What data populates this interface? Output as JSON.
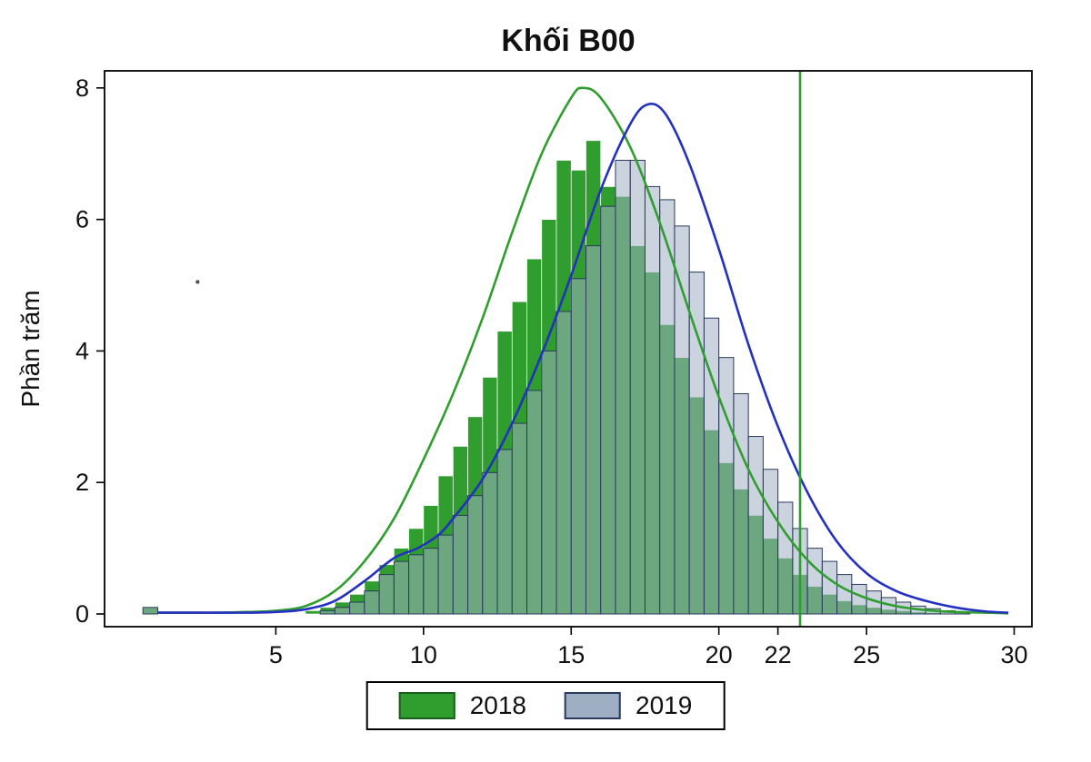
{
  "chart_data": {
    "type": "histogram-overlay",
    "title": "Khối B00",
    "ylabel": "Phần trăm",
    "xlabel": "",
    "xlim": [
      -0.8,
      30.6
    ],
    "ylim": [
      -0.193,
      8.26
    ],
    "x_ticks": [
      5,
      10,
      15,
      20,
      22,
      25,
      30
    ],
    "y_ticks": [
      0,
      2,
      4,
      6,
      8
    ],
    "bin_width": 0.5,
    "grid": false,
    "cutoff_line": {
      "x": 22.75,
      "color": "#2f9e2f"
    },
    "stray_dot": {
      "x": 2.35,
      "y": 5.05,
      "color": "#555555"
    },
    "series": [
      {
        "name": "2018",
        "bar_fill": "#2f9e2f",
        "bar_stroke": "#ffffff",
        "bar_stroke_width": 0.7,
        "bar_opacity": 1,
        "density_color": "#2f9e2f",
        "bars": [
          [
            0.75,
            0.1
          ],
          [
            6.25,
            0.05
          ],
          [
            6.75,
            0.1
          ],
          [
            7.25,
            0.18
          ],
          [
            7.75,
            0.3
          ],
          [
            8.25,
            0.5
          ],
          [
            8.75,
            0.75
          ],
          [
            9.25,
            1.0
          ],
          [
            9.75,
            1.3
          ],
          [
            10.25,
            1.65
          ],
          [
            10.75,
            2.1
          ],
          [
            11.25,
            2.55
          ],
          [
            11.75,
            3.0
          ],
          [
            12.25,
            3.6
          ],
          [
            12.75,
            4.3
          ],
          [
            13.25,
            4.75
          ],
          [
            13.75,
            5.4
          ],
          [
            14.25,
            6.0
          ],
          [
            14.75,
            6.9
          ],
          [
            15.25,
            6.75
          ],
          [
            15.75,
            7.2
          ],
          [
            16.25,
            6.5
          ],
          [
            16.75,
            6.35
          ],
          [
            17.25,
            5.6
          ],
          [
            17.75,
            5.2
          ],
          [
            18.25,
            4.4
          ],
          [
            18.75,
            3.9
          ],
          [
            19.25,
            3.3
          ],
          [
            19.75,
            2.8
          ],
          [
            20.25,
            2.3
          ],
          [
            20.75,
            1.9
          ],
          [
            21.25,
            1.5
          ],
          [
            21.75,
            1.15
          ],
          [
            22.25,
            0.85
          ],
          [
            22.75,
            0.6
          ],
          [
            23.25,
            0.42
          ],
          [
            23.75,
            0.3
          ],
          [
            24.25,
            0.2
          ],
          [
            24.75,
            0.14
          ],
          [
            25.25,
            0.1
          ],
          [
            25.75,
            0.07
          ],
          [
            26.25,
            0.05
          ],
          [
            26.75,
            0.03
          ],
          [
            27.25,
            0.02
          ]
        ],
        "density": [
          [
            1,
            0.02
          ],
          [
            2,
            0.02
          ],
          [
            3,
            0.02
          ],
          [
            4,
            0.03
          ],
          [
            5,
            0.05
          ],
          [
            6,
            0.12
          ],
          [
            7,
            0.35
          ],
          [
            8,
            0.8
          ],
          [
            9,
            1.45
          ],
          [
            10,
            2.35
          ],
          [
            11,
            3.35
          ],
          [
            12,
            4.5
          ],
          [
            13,
            5.8
          ],
          [
            14,
            7.0
          ],
          [
            15,
            7.85
          ],
          [
            15.4,
            8.0
          ],
          [
            16,
            7.85
          ],
          [
            17,
            7.1
          ],
          [
            18,
            5.95
          ],
          [
            19,
            4.6
          ],
          [
            20,
            3.3
          ],
          [
            21,
            2.2
          ],
          [
            22,
            1.4
          ],
          [
            23,
            0.82
          ],
          [
            24,
            0.45
          ],
          [
            25,
            0.24
          ],
          [
            26,
            0.12
          ],
          [
            27,
            0.06
          ],
          [
            28,
            0.03
          ],
          [
            29,
            0.02
          ],
          [
            29.8,
            0.01
          ]
        ]
      },
      {
        "name": "2019",
        "bar_fill": "#9fafc3",
        "bar_stroke": "#2b3a5c",
        "bar_stroke_width": 1,
        "bar_opacity": 0.55,
        "density_color": "#2430c0",
        "bars": [
          [
            0.75,
            0.1
          ],
          [
            6.75,
            0.05
          ],
          [
            7.25,
            0.1
          ],
          [
            7.75,
            0.18
          ],
          [
            8.25,
            0.35
          ],
          [
            8.75,
            0.6
          ],
          [
            9.25,
            0.8
          ],
          [
            9.75,
            0.9
          ],
          [
            10.25,
            1.0
          ],
          [
            10.75,
            1.2
          ],
          [
            11.25,
            1.5
          ],
          [
            11.75,
            1.8
          ],
          [
            12.25,
            2.15
          ],
          [
            12.75,
            2.5
          ],
          [
            13.25,
            2.9
          ],
          [
            13.75,
            3.4
          ],
          [
            14.25,
            4.0
          ],
          [
            14.75,
            4.6
          ],
          [
            15.25,
            5.1
          ],
          [
            15.75,
            5.6
          ],
          [
            16.25,
            6.2
          ],
          [
            16.75,
            6.9
          ],
          [
            17.25,
            6.9
          ],
          [
            17.75,
            6.5
          ],
          [
            18.25,
            6.3
          ],
          [
            18.75,
            5.9
          ],
          [
            19.25,
            5.2
          ],
          [
            19.75,
            4.5
          ],
          [
            20.25,
            3.9
          ],
          [
            20.75,
            3.35
          ],
          [
            21.25,
            2.7
          ],
          [
            21.75,
            2.2
          ],
          [
            22.25,
            1.7
          ],
          [
            22.75,
            1.3
          ],
          [
            23.25,
            1.0
          ],
          [
            23.75,
            0.8
          ],
          [
            24.25,
            0.6
          ],
          [
            24.75,
            0.45
          ],
          [
            25.25,
            0.35
          ],
          [
            25.75,
            0.25
          ],
          [
            26.25,
            0.18
          ],
          [
            26.75,
            0.12
          ],
          [
            27.25,
            0.08
          ],
          [
            27.75,
            0.05
          ],
          [
            28.25,
            0.03
          ]
        ],
        "density": [
          [
            1,
            0.02
          ],
          [
            2,
            0.02
          ],
          [
            3,
            0.02
          ],
          [
            4,
            0.02
          ],
          [
            5,
            0.03
          ],
          [
            6,
            0.07
          ],
          [
            7,
            0.2
          ],
          [
            8,
            0.5
          ],
          [
            9,
            0.85
          ],
          [
            9.8,
            1.0
          ],
          [
            10.5,
            1.2
          ],
          [
            11,
            1.45
          ],
          [
            12,
            2.05
          ],
          [
            13,
            2.9
          ],
          [
            14,
            3.95
          ],
          [
            15,
            5.15
          ],
          [
            16,
            6.45
          ],
          [
            17,
            7.45
          ],
          [
            17.6,
            7.75
          ],
          [
            18.2,
            7.6
          ],
          [
            19,
            6.85
          ],
          [
            20,
            5.55
          ],
          [
            21,
            4.1
          ],
          [
            22,
            2.85
          ],
          [
            23,
            1.85
          ],
          [
            24,
            1.1
          ],
          [
            25,
            0.62
          ],
          [
            26,
            0.35
          ],
          [
            27,
            0.2
          ],
          [
            28,
            0.1
          ],
          [
            29,
            0.04
          ],
          [
            29.8,
            0.02
          ]
        ]
      }
    ],
    "legend": [
      {
        "label": "2018",
        "fill": "#2f9e2f",
        "stroke": "#1a5c1a"
      },
      {
        "label": "2019",
        "fill": "#9fafc3",
        "stroke": "#2b3a5c"
      }
    ]
  }
}
